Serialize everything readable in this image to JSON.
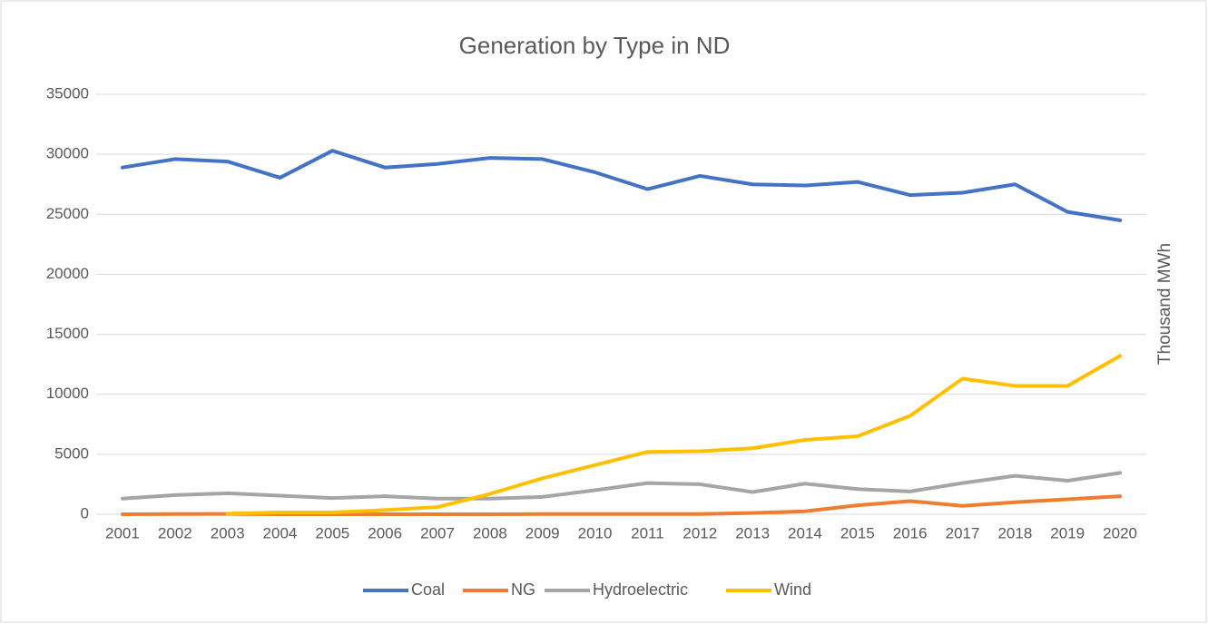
{
  "chart_data": {
    "type": "line",
    "title": "Generation by Type in ND",
    "y_label": "Thousand MWh",
    "categories": [
      "2001",
      "2002",
      "2003",
      "2004",
      "2005",
      "2006",
      "2007",
      "2008",
      "2009",
      "2010",
      "2011",
      "2012",
      "2013",
      "2014",
      "2015",
      "2016",
      "2017",
      "2018",
      "2019",
      "2020"
    ],
    "series": [
      {
        "name": "Coal",
        "color": "#4472c4",
        "values": [
          28900,
          29600,
          29400,
          28050,
          30300,
          28900,
          29200,
          29700,
          29600,
          28500,
          27100,
          28200,
          27500,
          27400,
          27700,
          26600,
          26800,
          27500,
          25200,
          24500
        ]
      },
      {
        "name": "NG",
        "color": "#ed7d31",
        "values": [
          0,
          20,
          30,
          0,
          0,
          0,
          0,
          0,
          20,
          20,
          20,
          20,
          100,
          250,
          750,
          1100,
          700,
          1000,
          1250,
          1500
        ]
      },
      {
        "name": "Hydroelectric",
        "color": "#a5a5a5",
        "values": [
          1300,
          1600,
          1750,
          1550,
          1350,
          1500,
          1300,
          1300,
          1450,
          2000,
          2600,
          2500,
          1850,
          2550,
          2100,
          1900,
          2600,
          3200,
          2800,
          3450
        ]
      },
      {
        "name": "Wind",
        "color": "#ffc000",
        "values": [
          null,
          null,
          50,
          150,
          150,
          350,
          600,
          1700,
          3000,
          4100,
          5200,
          5250,
          5500,
          6200,
          6500,
          8200,
          11300,
          10700,
          10700,
          13200
        ]
      }
    ],
    "ylim": [
      0,
      35000
    ],
    "yticks": [
      0,
      5000,
      10000,
      15000,
      20000,
      25000,
      30000,
      35000
    ],
    "grid": true,
    "legend": "bottom"
  }
}
